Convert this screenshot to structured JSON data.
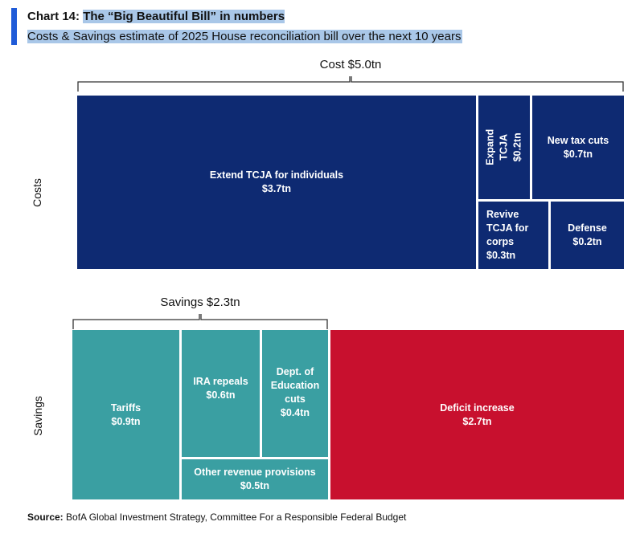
{
  "header": {
    "chart_number": "Chart 14:",
    "title": "The “Big Beautiful Bill” in numbers",
    "subtitle": "Costs & Savings estimate of 2025 House reconciliation bill over the next 10 years"
  },
  "colors": {
    "accent": "#1f5bd8",
    "costs": "#0e2a72",
    "savings": "#3a9fa2",
    "deficit": "#c8102e",
    "highlight": "#a9c7e8"
  },
  "chart_data": {
    "type": "treemap",
    "title": "The “Big Beautiful Bill” in numbers",
    "units": "USD trillion, 10-year",
    "groups": [
      {
        "name": "Costs",
        "total_label": "Cost $5.0tn",
        "total": 5.0,
        "items": [
          {
            "label": "Extend TCJA for individuals",
            "value_label": "$3.7tn",
            "value": 3.7
          },
          {
            "label": "Expand TCJA",
            "value_label": "$0.2tn",
            "value": 0.2
          },
          {
            "label": "New tax cuts",
            "value_label": "$0.7tn",
            "value": 0.7
          },
          {
            "label": "Revive TCJA for corps",
            "value_label": "$0.3tn",
            "value": 0.3
          },
          {
            "label": "Defense",
            "value_label": "$0.2tn",
            "value": 0.2
          }
        ]
      },
      {
        "name": "Savings",
        "total_label": "Savings $2.3tn",
        "total": 2.3,
        "items": [
          {
            "label": "Tariffs",
            "value_label": "$0.9tn",
            "value": 0.9
          },
          {
            "label": "IRA repeals",
            "value_label": "$0.6tn",
            "value": 0.6
          },
          {
            "label": "Dept. of Education cuts",
            "value_label": "$0.4tn",
            "value": 0.4
          },
          {
            "label": "Other revenue provisions",
            "value_label": "$0.5tn",
            "value": 0.5
          },
          {
            "label": "Deficit increase",
            "value_label": "$2.7tn",
            "value": 2.7
          }
        ]
      }
    ]
  },
  "source": {
    "label": "Source:",
    "text": "BofA Global Investment Strategy, Committee For a Responsible Federal Budget"
  }
}
